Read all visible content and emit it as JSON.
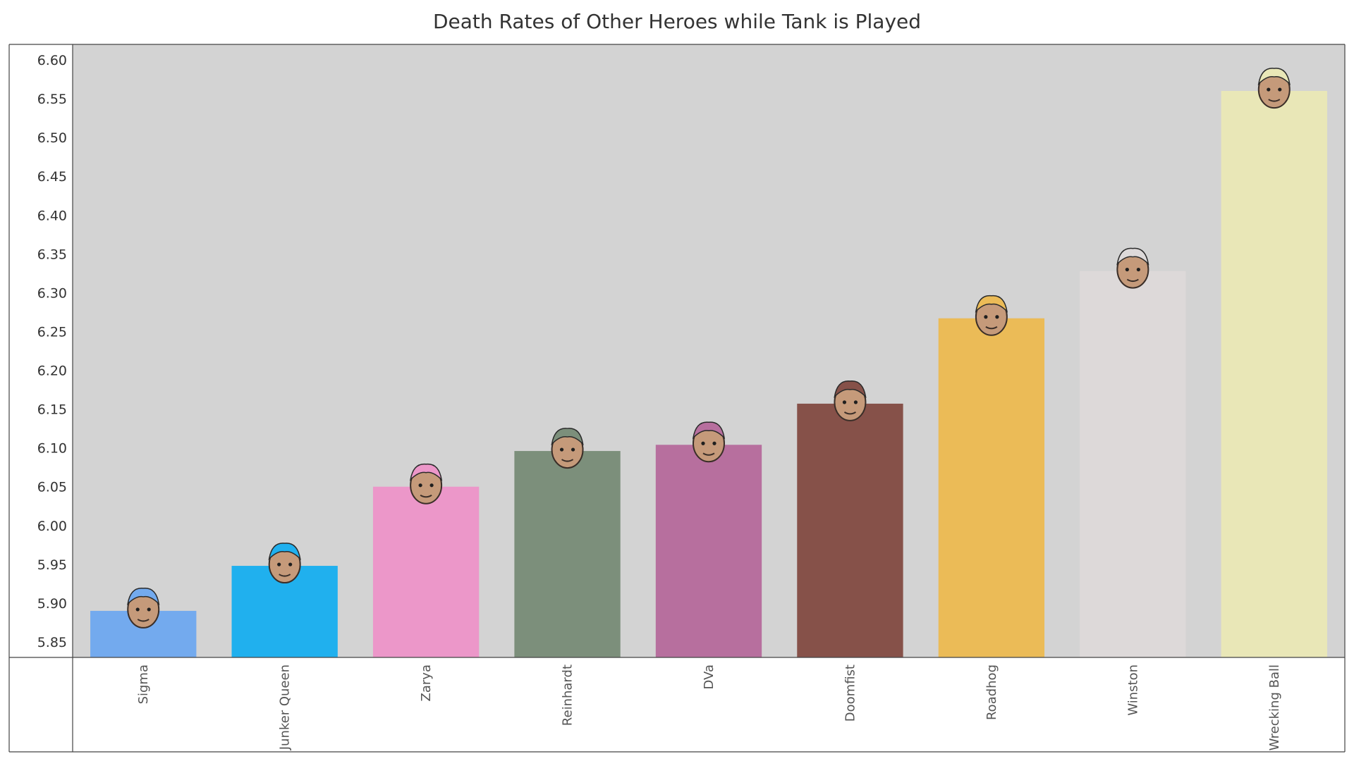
{
  "chart_data": {
    "type": "bar",
    "title": "Death Rates of Other Heroes while Tank is Played",
    "xlabel": "",
    "ylabel": "",
    "ylim": [
      5.83,
      6.62
    ],
    "y_ticks": [
      "5.85",
      "5.90",
      "5.95",
      "6.00",
      "6.05",
      "6.10",
      "6.15",
      "6.20",
      "6.25",
      "6.30",
      "6.35",
      "6.40",
      "6.45",
      "6.50",
      "6.55",
      "6.60"
    ],
    "categories": [
      "Sigma",
      "Junker Queen",
      "Zarya",
      "Reinhardt",
      "DVa",
      "Doomfist",
      "Roadhog",
      "Winston",
      "Wrecking Ball"
    ],
    "values": [
      5.89,
      5.948,
      6.05,
      6.096,
      6.104,
      6.157,
      6.267,
      6.328,
      6.56
    ],
    "bar_colors": [
      "#73aaee",
      "#20b0ee",
      "#ec97c9",
      "#7c8f7b",
      "#b76f9e",
      "#865149",
      "#ebbb57",
      "#ddd9d9",
      "#e9e7b7"
    ],
    "hero_icons": [
      "sigma-portrait-icon",
      "junker-queen-portrait-icon",
      "zarya-portrait-icon",
      "reinhardt-portrait-icon",
      "dva-portrait-icon",
      "doomfist-portrait-icon",
      "roadhog-portrait-icon",
      "winston-portrait-icon",
      "wrecking-ball-portrait-icon"
    ],
    "plot_background": "#d3d3d3",
    "grid": false,
    "legend": "none"
  }
}
